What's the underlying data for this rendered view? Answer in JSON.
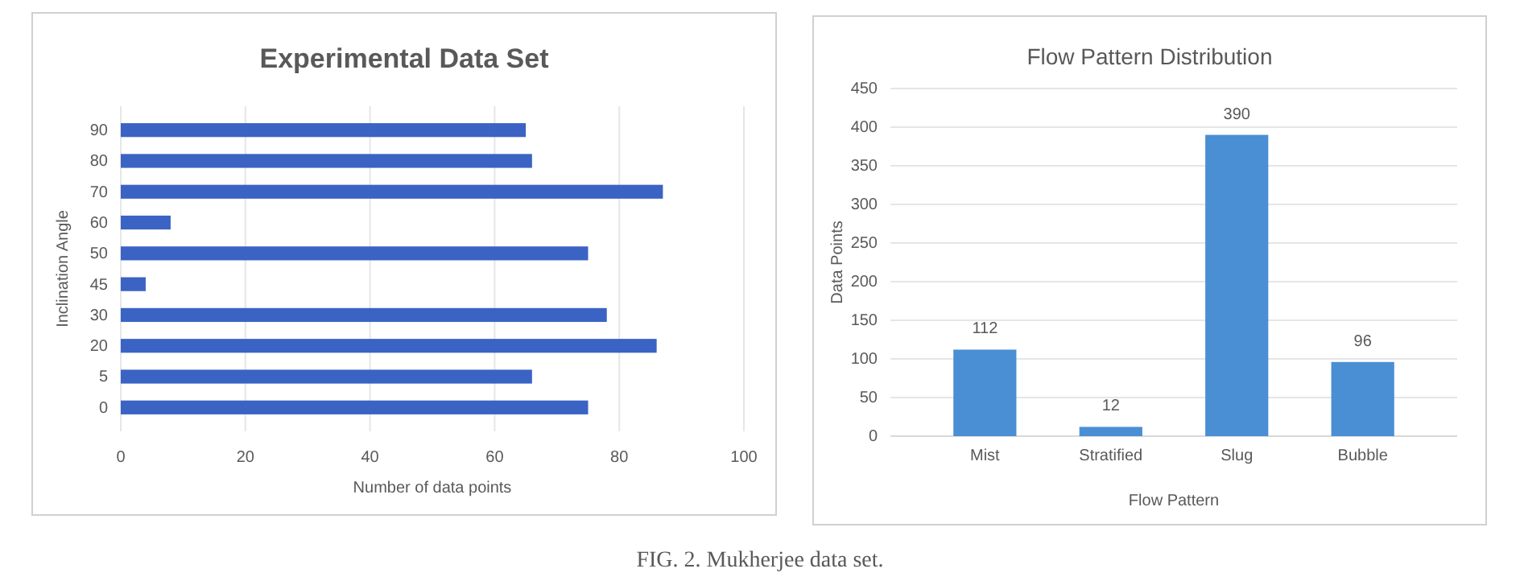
{
  "chart_data": [
    {
      "type": "bar",
      "title": "Experimental Data Set",
      "orientation": "horizontal",
      "xlabel": "Number of data points",
      "ylabel": "Inclination Angle",
      "categories": [
        "90",
        "80",
        "70",
        "60",
        "50",
        "45",
        "30",
        "20",
        "5",
        "0"
      ],
      "values": [
        65,
        66,
        87,
        8,
        75,
        4,
        78,
        86,
        66,
        75
      ],
      "color": "#3a63c4",
      "xlim": [
        0,
        100
      ],
      "xticks": [
        0,
        20,
        40,
        60,
        80,
        100
      ],
      "grid": "x",
      "annotations": [
        "FIG. 2. Mukherjee data set."
      ]
    },
    {
      "type": "bar",
      "title": "Flow Pattern Distribution",
      "xlabel": "Flow Pattern",
      "ylabel": "Data Points",
      "categories": [
        "Mist",
        "Stratified",
        "Slug",
        "Bubble"
      ],
      "values": [
        112,
        12,
        390,
        96
      ],
      "color": "#4a8fd4",
      "ylim": [
        0,
        450
      ],
      "yticks": [
        0,
        50,
        100,
        150,
        200,
        250,
        300,
        350,
        400,
        450
      ],
      "grid": "y",
      "data_labels": true
    }
  ]
}
